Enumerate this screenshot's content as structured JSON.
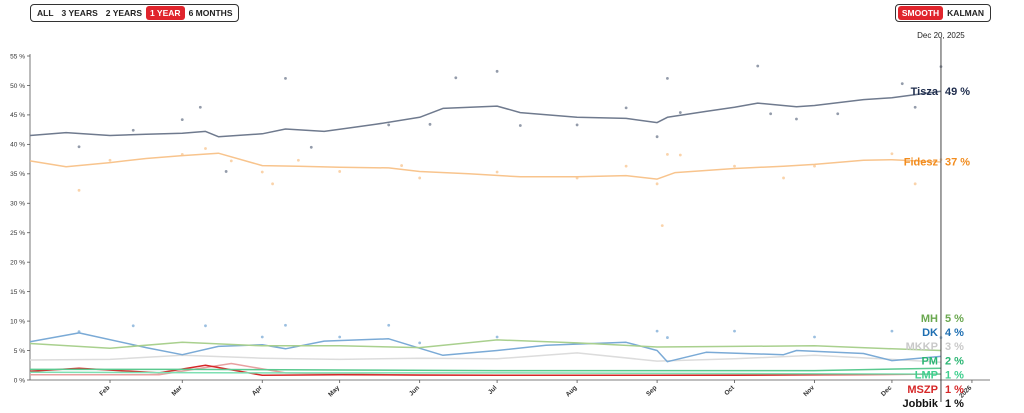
{
  "range_buttons": [
    {
      "label": "ALL",
      "active": false
    },
    {
      "label": "3 YEARS",
      "active": false
    },
    {
      "label": "2 YEARS",
      "active": false
    },
    {
      "label": "1 YEAR",
      "active": true
    },
    {
      "label": "6 MONTHS",
      "active": false
    }
  ],
  "model_buttons": [
    {
      "label": "SMOOTH",
      "active": true
    },
    {
      "label": "KALMAN",
      "active": false
    }
  ],
  "chart_data": {
    "type": "line",
    "title": "",
    "xlabel": "",
    "ylabel": "",
    "y_unit": "%",
    "ylim": [
      0,
      55
    ],
    "y_ticks": [
      0,
      5,
      10,
      15,
      20,
      25,
      30,
      35,
      40,
      45,
      50,
      55
    ],
    "x_range": [
      "2025-01-01",
      "2026-01-08"
    ],
    "x_tick_labels": [
      "Feb",
      "Mar",
      "Apr",
      "May",
      "Jun",
      "Jul",
      "Aug",
      "Sep",
      "Oct",
      "Nov",
      "Dec",
      "2026"
    ],
    "x_tick_dates": [
      "2025-02-01",
      "2025-03-01",
      "2025-04-01",
      "2025-05-01",
      "2025-06-01",
      "2025-07-01",
      "2025-08-01",
      "2025-09-01",
      "2025-10-01",
      "2025-11-01",
      "2025-12-01",
      "2026-01-01"
    ],
    "cursor_date_label": "Dec 20, 2025",
    "cursor_date": "2025-12-20",
    "grid": false,
    "legend": "right",
    "series": [
      {
        "name": "Tisza",
        "label": "49 %",
        "color": "#1f2d4d",
        "line_color": "#6f7a8e",
        "points": [
          [
            "2025-01-01",
            41.5
          ],
          [
            "2025-01-15",
            42
          ],
          [
            "2025-02-01",
            41.5
          ],
          [
            "2025-02-15",
            41.7
          ],
          [
            "2025-03-01",
            41.9
          ],
          [
            "2025-03-10",
            42.2
          ],
          [
            "2025-03-15",
            41.3
          ],
          [
            "2025-04-01",
            41.8
          ],
          [
            "2025-04-10",
            42.6
          ],
          [
            "2025-04-25",
            42.2
          ],
          [
            "2025-05-15",
            43.4
          ],
          [
            "2025-06-01",
            44.6
          ],
          [
            "2025-06-10",
            46.1
          ],
          [
            "2025-07-01",
            46.5
          ],
          [
            "2025-07-10",
            45.4
          ],
          [
            "2025-08-01",
            44.6
          ],
          [
            "2025-08-20",
            44.4
          ],
          [
            "2025-09-01",
            43.7
          ],
          [
            "2025-09-05",
            44.6
          ],
          [
            "2025-09-20",
            45.6
          ],
          [
            "2025-10-01",
            46.3
          ],
          [
            "2025-10-10",
            47
          ],
          [
            "2025-10-25",
            46.4
          ],
          [
            "2025-11-01",
            46.6
          ],
          [
            "2025-11-20",
            47.6
          ],
          [
            "2025-12-01",
            47.9
          ],
          [
            "2025-12-20",
            49
          ]
        ]
      },
      {
        "name": "Fidesz",
        "label": "37 %",
        "color": "#f28c1e",
        "line_color": "#f8c48d",
        "points": [
          [
            "2025-01-01",
            37.2
          ],
          [
            "2025-01-15",
            36.2
          ],
          [
            "2025-02-01",
            36.9
          ],
          [
            "2025-02-15",
            37.6
          ],
          [
            "2025-03-01",
            38.1
          ],
          [
            "2025-03-15",
            38.5
          ],
          [
            "2025-04-01",
            36.4
          ],
          [
            "2025-04-15",
            36.3
          ],
          [
            "2025-05-01",
            36.1
          ],
          [
            "2025-05-20",
            36.0
          ],
          [
            "2025-06-01",
            35.4
          ],
          [
            "2025-06-20",
            35.0
          ],
          [
            "2025-07-10",
            34.5
          ],
          [
            "2025-08-01",
            34.5
          ],
          [
            "2025-08-20",
            34.7
          ],
          [
            "2025-09-01",
            34.1
          ],
          [
            "2025-09-08",
            35.2
          ],
          [
            "2025-10-01",
            35.9
          ],
          [
            "2025-10-20",
            36.3
          ],
          [
            "2025-11-01",
            36.6
          ],
          [
            "2025-11-20",
            37.3
          ],
          [
            "2025-12-01",
            37.4
          ],
          [
            "2025-12-20",
            37
          ]
        ]
      },
      {
        "name": "MH",
        "label": "5 %",
        "color": "#6aa84f",
        "line_color": "#a9d08e",
        "points": [
          [
            "2025-01-01",
            6.2
          ],
          [
            "2025-02-01",
            5.4
          ],
          [
            "2025-03-01",
            6.4
          ],
          [
            "2025-04-01",
            5.8
          ],
          [
            "2025-05-01",
            5.8
          ],
          [
            "2025-06-01",
            5.5
          ],
          [
            "2025-07-01",
            6.8
          ],
          [
            "2025-08-01",
            6.3
          ],
          [
            "2025-09-01",
            5.6
          ],
          [
            "2025-10-01",
            5.7
          ],
          [
            "2025-11-01",
            5.8
          ],
          [
            "2025-12-01",
            5.3
          ],
          [
            "2025-12-20",
            5
          ]
        ]
      },
      {
        "name": "DK",
        "label": "4 %",
        "color": "#1f6fb2",
        "line_color": "#7aaad6",
        "points": [
          [
            "2025-01-01",
            6.5
          ],
          [
            "2025-01-20",
            8
          ],
          [
            "2025-02-15",
            5.5
          ],
          [
            "2025-03-01",
            4.3
          ],
          [
            "2025-03-15",
            5.7
          ],
          [
            "2025-04-01",
            6.0
          ],
          [
            "2025-04-10",
            5.3
          ],
          [
            "2025-04-25",
            6.6
          ],
          [
            "2025-05-20",
            7.0
          ],
          [
            "2025-06-10",
            4.2
          ],
          [
            "2025-07-01",
            5.0
          ],
          [
            "2025-07-20",
            5.9
          ],
          [
            "2025-08-20",
            6.4
          ],
          [
            "2025-09-01",
            5.0
          ],
          [
            "2025-09-05",
            3.1
          ],
          [
            "2025-09-20",
            4.7
          ],
          [
            "2025-10-20",
            4.3
          ],
          [
            "2025-10-25",
            5.0
          ],
          [
            "2025-11-20",
            4.5
          ],
          [
            "2025-12-01",
            3.3
          ],
          [
            "2025-12-20",
            4
          ]
        ]
      },
      {
        "name": "MKKP",
        "label": "3 %",
        "color": "#c9c9c9",
        "line_color": "#dcdcdc",
        "points": [
          [
            "2025-01-01",
            3.4
          ],
          [
            "2025-02-01",
            3.5
          ],
          [
            "2025-03-01",
            4.2
          ],
          [
            "2025-04-01",
            3.7
          ],
          [
            "2025-05-01",
            3.5
          ],
          [
            "2025-06-01",
            3.7
          ],
          [
            "2025-07-01",
            3.6
          ],
          [
            "2025-08-01",
            4.6
          ],
          [
            "2025-09-01",
            3.2
          ],
          [
            "2025-10-01",
            3.6
          ],
          [
            "2025-11-01",
            4.2
          ],
          [
            "2025-12-01",
            3.5
          ],
          [
            "2025-12-20",
            3
          ]
        ]
      },
      {
        "name": "PM",
        "label": "2 %",
        "color": "#2bb673",
        "line_color": "#5ac98f",
        "points": [
          [
            "2025-01-01",
            1.8
          ],
          [
            "2025-03-01",
            1.8
          ],
          [
            "2025-05-01",
            1.7
          ],
          [
            "2025-07-01",
            1.6
          ],
          [
            "2025-09-01",
            1.6
          ],
          [
            "2025-11-01",
            1.6
          ],
          [
            "2025-12-20",
            2
          ]
        ]
      },
      {
        "name": "LMP",
        "label": "1 %",
        "color": "#3fcf8e",
        "line_color": "#7ee0b3",
        "points": [
          [
            "2025-01-01",
            1.3
          ],
          [
            "2025-04-01",
            1.2
          ],
          [
            "2025-07-01",
            1.2
          ],
          [
            "2025-10-01",
            1.1
          ],
          [
            "2025-12-20",
            1
          ]
        ]
      },
      {
        "name": "MSZP",
        "label": "1 %",
        "color": "#d62728",
        "line_color": "#d62728",
        "points": [
          [
            "2025-01-01",
            1.5
          ],
          [
            "2025-01-20",
            2.0
          ],
          [
            "2025-02-20",
            1.2
          ],
          [
            "2025-03-10",
            2.5
          ],
          [
            "2025-04-01",
            0.8
          ],
          [
            "2025-05-01",
            0.9
          ],
          [
            "2025-07-01",
            0.8
          ],
          [
            "2025-10-01",
            0.8
          ],
          [
            "2025-12-20",
            1
          ]
        ]
      },
      {
        "name": "Jobbik",
        "label": "1 %",
        "color": "#111111",
        "line_color": "#e8a0a0",
        "points": [
          [
            "2025-01-01",
            0.9
          ],
          [
            "2025-02-20",
            0.9
          ],
          [
            "2025-03-20",
            2.8
          ],
          [
            "2025-04-10",
            1.2
          ],
          [
            "2025-06-01",
            0.8
          ],
          [
            "2025-09-01",
            0.8
          ],
          [
            "2025-12-20",
            1
          ]
        ]
      }
    ],
    "poll_dots": [
      {
        "series": "Tisza",
        "points": [
          [
            "2025-01-20",
            39.6
          ],
          [
            "2025-02-10",
            42.4
          ],
          [
            "2025-03-01",
            44.2
          ],
          [
            "2025-03-08",
            46.3
          ],
          [
            "2025-03-18",
            35.4
          ],
          [
            "2025-04-10",
            51.2
          ],
          [
            "2025-04-20",
            39.5
          ],
          [
            "2025-05-20",
            43.3
          ],
          [
            "2025-06-05",
            43.4
          ],
          [
            "2025-06-15",
            51.3
          ],
          [
            "2025-07-01",
            52.4
          ],
          [
            "2025-07-10",
            43.2
          ],
          [
            "2025-08-01",
            43.3
          ],
          [
            "2025-08-20",
            46.2
          ],
          [
            "2025-09-01",
            41.3
          ],
          [
            "2025-09-05",
            51.2
          ],
          [
            "2025-09-10",
            45.4
          ],
          [
            "2025-10-10",
            53.3
          ],
          [
            "2025-10-15",
            45.2
          ],
          [
            "2025-10-25",
            44.3
          ],
          [
            "2025-11-10",
            45.2
          ],
          [
            "2025-12-05",
            50.3
          ],
          [
            "2025-12-10",
            46.3
          ],
          [
            "2025-12-20",
            53.2
          ]
        ]
      },
      {
        "series": "Fidesz",
        "points": [
          [
            "2025-01-20",
            32.2
          ],
          [
            "2025-02-01",
            37.3
          ],
          [
            "2025-03-01",
            38.3
          ],
          [
            "2025-03-10",
            39.3
          ],
          [
            "2025-03-20",
            37.2
          ],
          [
            "2025-04-01",
            35.3
          ],
          [
            "2025-04-05",
            33.3
          ],
          [
            "2025-04-15",
            37.3
          ],
          [
            "2025-05-01",
            35.4
          ],
          [
            "2025-05-25",
            36.4
          ],
          [
            "2025-06-01",
            34.3
          ],
          [
            "2025-07-01",
            35.3
          ],
          [
            "2025-08-01",
            34.3
          ],
          [
            "2025-08-20",
            36.3
          ],
          [
            "2025-09-01",
            33.3
          ],
          [
            "2025-09-03",
            26.2
          ],
          [
            "2025-09-05",
            38.3
          ],
          [
            "2025-09-10",
            38.2
          ],
          [
            "2025-10-01",
            36.3
          ],
          [
            "2025-10-20",
            34.3
          ],
          [
            "2025-11-01",
            36.3
          ],
          [
            "2025-12-01",
            38.4
          ],
          [
            "2025-12-10",
            33.3
          ],
          [
            "2025-12-20",
            37.4
          ]
        ]
      },
      {
        "series": "DK",
        "points": [
          [
            "2025-01-20",
            8.2
          ],
          [
            "2025-02-10",
            9.2
          ],
          [
            "2025-03-10",
            9.2
          ],
          [
            "2025-04-01",
            7.3
          ],
          [
            "2025-04-10",
            9.3
          ],
          [
            "2025-05-01",
            7.3
          ],
          [
            "2025-05-20",
            9.3
          ],
          [
            "2025-06-01",
            6.3
          ],
          [
            "2025-07-01",
            7.3
          ],
          [
            "2025-09-01",
            8.3
          ],
          [
            "2025-09-05",
            7.2
          ],
          [
            "2025-10-01",
            8.3
          ],
          [
            "2025-11-01",
            7.3
          ],
          [
            "2025-12-01",
            8.3
          ],
          [
            "2025-12-20",
            7.2
          ]
        ]
      }
    ]
  }
}
